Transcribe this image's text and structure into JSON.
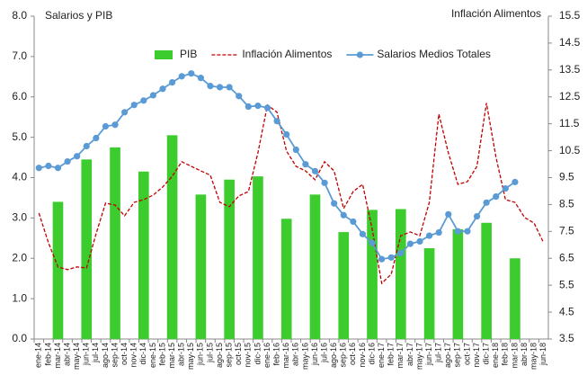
{
  "chart_data": {
    "type": "bar",
    "title": "Salarios y PIB",
    "y2_title": "Inflación Alimentos",
    "categories": [
      "ene-14",
      "feb-14",
      "mar-14",
      "abr-14",
      "may-14",
      "jun-14",
      "jul-14",
      "ago-14",
      "sep-14",
      "oct-14",
      "nov-14",
      "dic-14",
      "ene-15",
      "feb-15",
      "mar-15",
      "abr-15",
      "may-15",
      "jun-15",
      "jul-15",
      "ago-15",
      "sep-15",
      "oct-15",
      "nov-15",
      "dic-15",
      "ene-16",
      "feb-16",
      "mar-16",
      "abr-16",
      "may-16",
      "jun-16",
      "jul-16",
      "ago-16",
      "sep-16",
      "oct-16",
      "nov-16",
      "dic-16",
      "ene-17",
      "feb-17",
      "mar-17",
      "abr-17",
      "may-17",
      "jun-17",
      "jul-17",
      "ago-17",
      "sep-17",
      "oct-17",
      "nov-17",
      "dic-17",
      "ene-18",
      "feb-18",
      "mar-18",
      "abr-18",
      "may-18",
      "jun-18"
    ],
    "ylim": [
      0,
      8
    ],
    "yticks": [
      {
        "value": 0,
        "label": "0.0"
      },
      {
        "value": 1,
        "label": "1.0"
      },
      {
        "value": 2,
        "label": "2.0"
      },
      {
        "value": 3,
        "label": "3.0"
      },
      {
        "value": 4,
        "label": "4.0"
      },
      {
        "value": 5,
        "label": "5.0"
      },
      {
        "value": 6,
        "label": "6.0"
      },
      {
        "value": 7,
        "label": "7.0"
      },
      {
        "value": 8,
        "label": "8.0"
      }
    ],
    "y2lim": [
      3.5,
      15.5
    ],
    "y2ticks": [
      3.5,
      4.5,
      5.5,
      6.5,
      7.5,
      8.5,
      9.5,
      10.5,
      11.5,
      12.5,
      13.5,
      14.5,
      15.5
    ],
    "grid": false,
    "legend": "top",
    "series": [
      {
        "name": "PIB",
        "type": "bar",
        "color": "#3ccc2e",
        "values": [
          null,
          null,
          3.4,
          null,
          null,
          4.45,
          null,
          null,
          4.75,
          null,
          null,
          4.15,
          null,
          null,
          5.05,
          null,
          null,
          3.58,
          null,
          null,
          3.95,
          null,
          null,
          4.03,
          null,
          null,
          2.98,
          null,
          null,
          3.58,
          null,
          null,
          2.65,
          null,
          null,
          3.2,
          null,
          null,
          3.22,
          null,
          null,
          2.25,
          null,
          null,
          2.72,
          null,
          null,
          2.88,
          null,
          null,
          2.0,
          null,
          null,
          null
        ]
      },
      {
        "name": "Inflación Alimentos",
        "type": "line",
        "style": "dashed",
        "axis": "y2",
        "color": "#c00000",
        "values": [
          8.18,
          7.08,
          6.18,
          6.08,
          6.18,
          6.14,
          7.41,
          8.55,
          8.48,
          8.08,
          8.58,
          8.68,
          8.85,
          9.15,
          9.55,
          10.09,
          9.92,
          9.75,
          9.59,
          8.58,
          8.42,
          8.82,
          8.98,
          10.42,
          12.2,
          11.93,
          10.49,
          9.92,
          9.75,
          9.42,
          10.09,
          9.75,
          8.35,
          8.98,
          9.25,
          7.58,
          5.57,
          5.91,
          7.34,
          7.48,
          7.34,
          8.58,
          11.86,
          10.42,
          9.25,
          9.35,
          9.92,
          12.27,
          10.26,
          8.68,
          8.58,
          8.02,
          7.81,
          7.08
        ]
      },
      {
        "name": "Salarios Medios Totales",
        "type": "line",
        "style": "markers",
        "color": "#5b9bd5",
        "values": [
          4.24,
          4.29,
          4.24,
          4.4,
          4.53,
          4.78,
          4.98,
          5.27,
          5.31,
          5.62,
          5.8,
          5.91,
          6.04,
          6.2,
          6.36,
          6.51,
          6.58,
          6.47,
          6.27,
          6.24,
          6.24,
          6.02,
          5.76,
          5.78,
          5.73,
          5.4,
          5.07,
          4.69,
          4.33,
          4.16,
          3.87,
          3.36,
          3.07,
          2.91,
          2.6,
          2.38,
          1.98,
          2.02,
          2.13,
          2.36,
          2.42,
          2.56,
          2.64,
          3.09,
          2.67,
          2.67,
          3.04,
          3.38,
          3.53,
          3.73,
          3.89,
          null,
          null,
          null
        ]
      }
    ]
  }
}
